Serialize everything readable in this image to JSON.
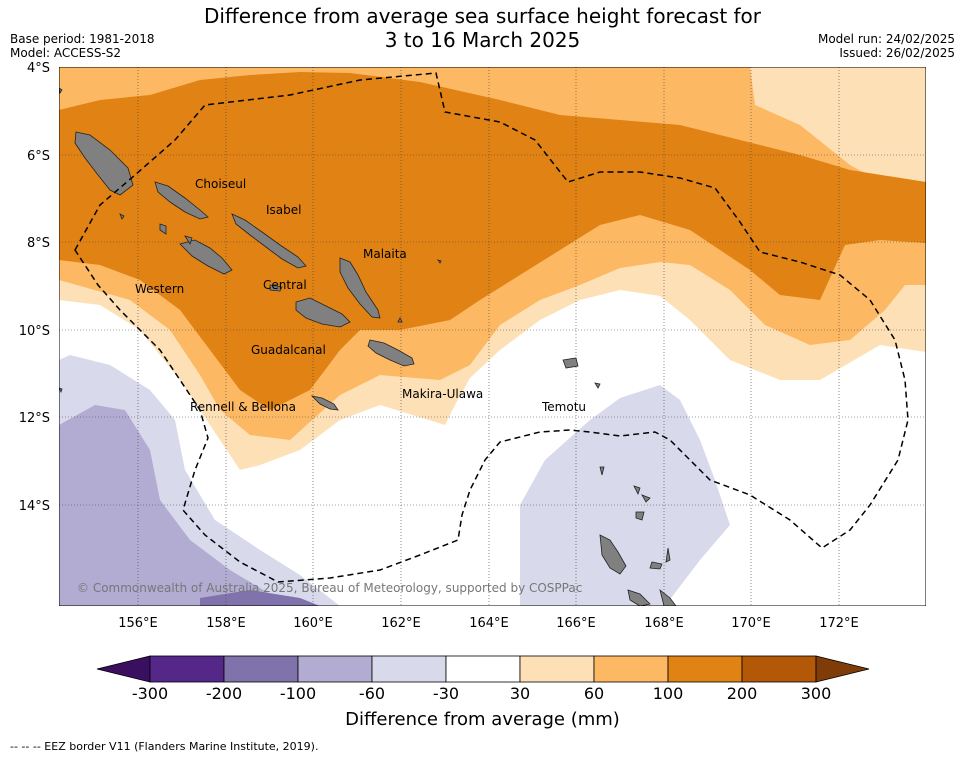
{
  "header": {
    "title_line1": "Difference from average sea surface height forecast for",
    "title_line2": "3 to 16 March 2025",
    "base_period": "Base period: 1981-2018",
    "model": "Model: ACCESS-S2",
    "model_run": "Model run: 24/02/2025",
    "issued": "Issued: 26/02/2025"
  },
  "map": {
    "lat_labels": [
      "4°S",
      "6°S",
      "8°S",
      "10°S",
      "12°S",
      "14°S"
    ],
    "lon_labels": [
      "156°E",
      "158°E",
      "160°E",
      "162°E",
      "164°E",
      "166°E",
      "168°E",
      "170°E",
      "172°E"
    ],
    "place_labels": [
      "Choiseul",
      "Isabel",
      "Malaita",
      "Western",
      "Central",
      "Guadalcanal",
      "Rennell & Bellona",
      "Makira-Ulawa",
      "Temotu"
    ],
    "copyright": "© Commonwealth of Australia 2025, Bureau of Meteorology, supported by COSPPac"
  },
  "colorbar": {
    "colors": [
      "#3b0f60",
      "#542788",
      "#8073ac",
      "#b2abd2",
      "#d8daeb",
      "#ffffff",
      "#fee0b6",
      "#fdb863",
      "#e08214",
      "#b35806",
      "#7f3b08"
    ],
    "tick_labels": [
      "-300",
      "-200",
      "-100",
      "-60",
      "-30",
      "30",
      "60",
      "100",
      "200",
      "300"
    ],
    "title": "Difference from average (mm)"
  },
  "footer": {
    "legend_text": "--  --  -- EEZ border V11 (Flanders Marine Institute, 2019)."
  }
}
